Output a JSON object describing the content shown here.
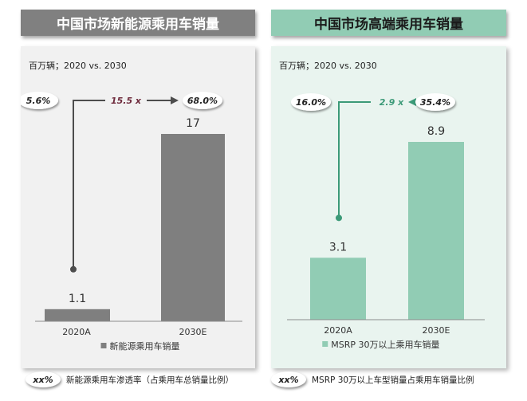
{
  "charts": [
    {
      "title": "中国市场新能源乘用车销量",
      "footer_badge": "xx%",
      "footer_text": "新能源乘用车渗透率（占乘用车总销量比例）",
      "colors": {
        "bar": "#7f7f7f",
        "arrow": "#4d4d4d",
        "multiplier": "#6e2a3c"
      },
      "chart_data": {
        "type": "bar",
        "unit_label": "百万辆；2020 vs. 2030",
        "categories": [
          "2020A",
          "2030E"
        ],
        "series": [
          {
            "name": "新能源乘用车销量",
            "values": [
              1.1,
              17
            ]
          }
        ],
        "value_labels": [
          "1.1",
          "17"
        ],
        "share_labels": [
          "5.6%",
          "68.0%"
        ],
        "multiplier": "15.5 x",
        "legend_position": "bottom"
      }
    },
    {
      "title": "中国市场高端乘用车销量",
      "footer_badge": "xx%",
      "footer_text": "MSRP 30万以上车型销量占乘用车销量比例",
      "colors": {
        "bar": "#91ccb4",
        "arrow": "#3c9a78",
        "multiplier": "#3c9a78"
      },
      "chart_data": {
        "type": "bar",
        "unit_label": "百万辆；2020 vs. 2030",
        "categories": [
          "2020A",
          "2030E"
        ],
        "series": [
          {
            "name": "MSRP 30万以上乘用车销量",
            "values": [
              3.1,
              8.9
            ]
          }
        ],
        "value_labels": [
          "3.1",
          "8.9"
        ],
        "share_labels": [
          "16.0%",
          "35.4%"
        ],
        "multiplier": "2.9 x",
        "legend_position": "bottom"
      }
    }
  ]
}
